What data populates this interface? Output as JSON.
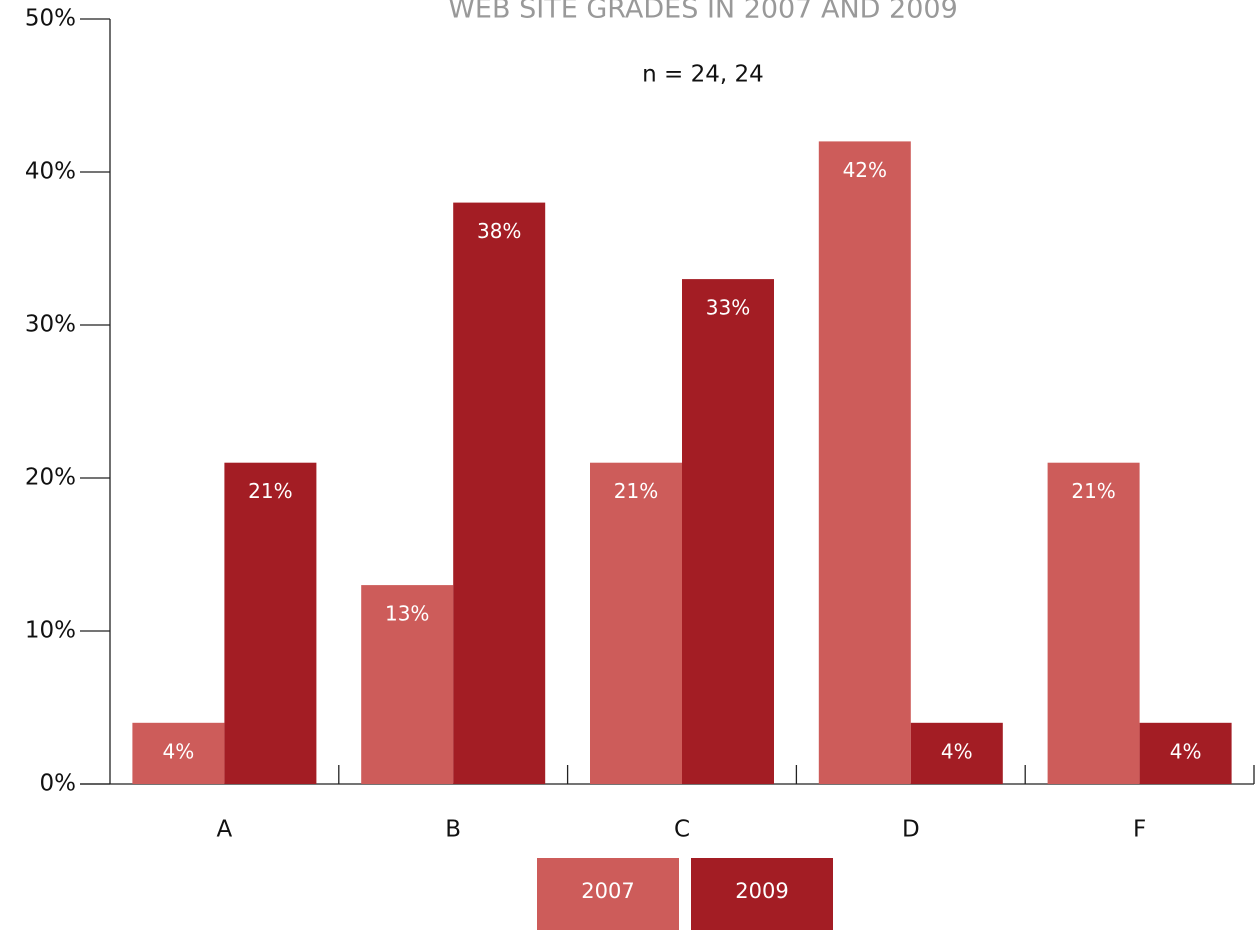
{
  "chart_data": {
    "type": "bar",
    "title": "WEB SITE GRADES IN 2007 AND 2009",
    "subtitle": "n = 24, 24",
    "categories": [
      "A",
      "B",
      "C",
      "D",
      "F"
    ],
    "series": [
      {
        "name": "2007",
        "color": "#cd5c5a",
        "values": [
          4,
          13,
          21,
          42,
          21
        ],
        "value_labels": [
          "4%",
          "13%",
          "21%",
          "42%",
          "21%"
        ]
      },
      {
        "name": "2009",
        "color": "#a31d24",
        "values": [
          21,
          38,
          33,
          4,
          4
        ],
        "value_labels": [
          "21%",
          "38%",
          "33%",
          "4%",
          "4%"
        ]
      }
    ],
    "ylim": [
      0,
      50
    ],
    "yticks": [
      {
        "value": 0,
        "label": "0%"
      },
      {
        "value": 10,
        "label": "10%"
      },
      {
        "value": 20,
        "label": "20%"
      },
      {
        "value": 30,
        "label": "30%"
      },
      {
        "value": 40,
        "label": "40%"
      },
      {
        "value": 50,
        "label": "50%"
      }
    ],
    "legend": "bottom"
  }
}
